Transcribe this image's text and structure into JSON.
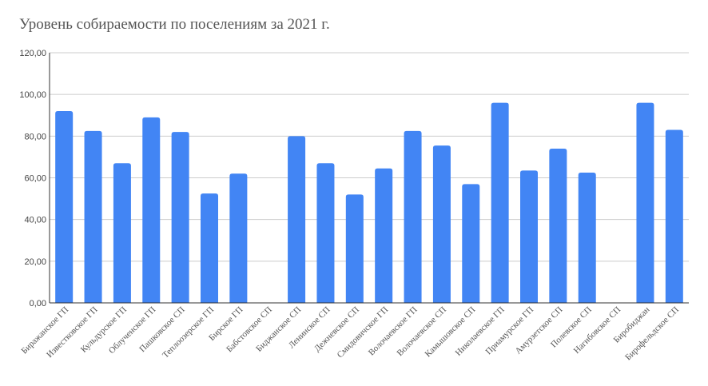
{
  "chart_data": {
    "type": "bar",
    "title": "Уровень собираемости по поселениям за 2021 г.",
    "xlabel": "",
    "ylabel": "",
    "ylim": [
      0,
      120
    ],
    "yticks": [
      "0,00",
      "20,00",
      "40,00",
      "60,00",
      "80,00",
      "100,00",
      "120,00"
    ],
    "grid": true,
    "bar_color": "#4285f4",
    "categories": [
      "Биражанское ГП",
      "Известковское ГП",
      "Кульдурское ГП",
      "Облученское ГП",
      "Пашковское СП",
      "Теплоозерское ГП",
      "Бирское ГП",
      "Бабстовское СП",
      "Биджанское СП",
      "Ленинское СП",
      "Дежневское СП",
      "Смидовичское ГП",
      "Волочаевское ГП",
      "Волочаевское СП",
      "Камышовское СП",
      "Николаевское ГП",
      "Приамурское ГП",
      "Амурзетское СП",
      "Полевское СП",
      "Нагибовское СП",
      "Биробиджан",
      "Бирофельдское СП"
    ],
    "values": [
      92,
      82.5,
      67,
      89,
      82,
      52.5,
      62,
      0,
      80,
      67,
      52,
      64.5,
      82.5,
      75.5,
      57,
      96,
      63.5,
      74,
      62.5,
      0,
      96,
      83
    ]
  }
}
